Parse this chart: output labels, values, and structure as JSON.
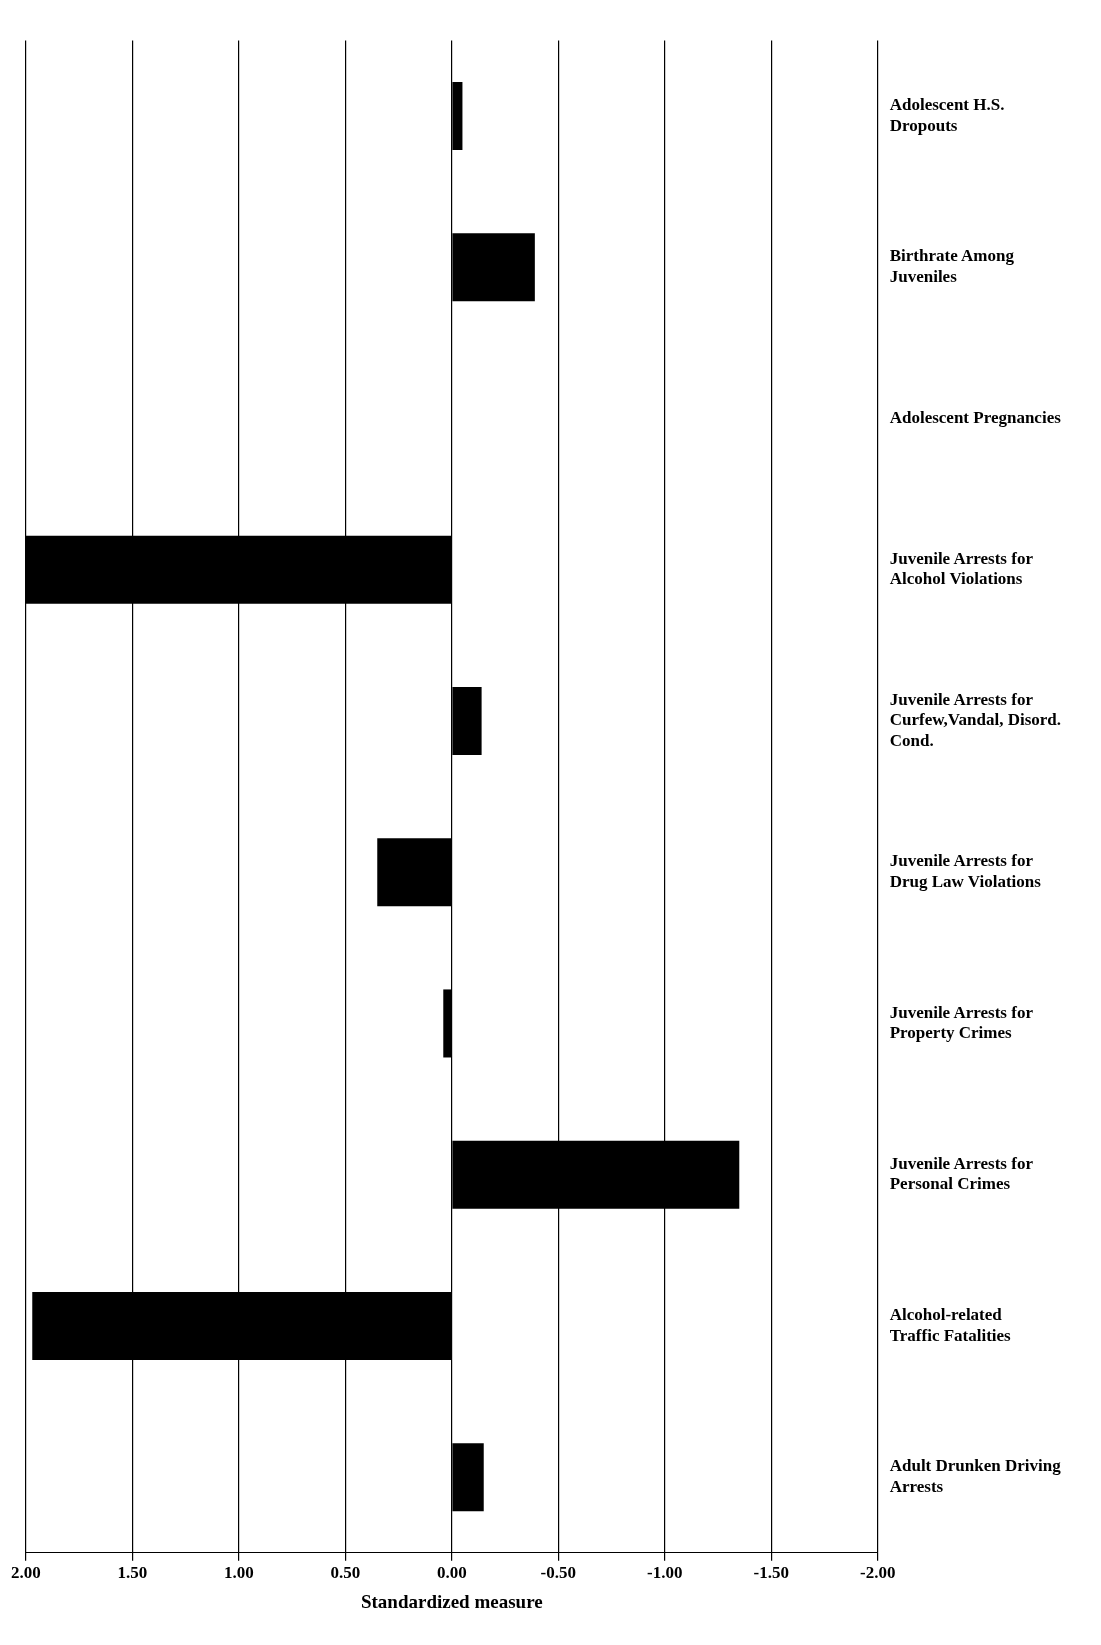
{
  "chart_data": {
    "type": "bar",
    "orientation": "horizontal",
    "xlabel": "Standardized measure",
    "categories": [
      "Adolescent H.S. Dropouts",
      "Birthrate Among Juveniles",
      "Adolescent Pregnancies",
      "Juvenile Arrests for Alcohol Violations",
      "Juvenile Arrests for Curfew,Vandal, Disord. Cond.",
      "Juvenile Arrests for Drug Law Violations",
      "Juvenile Arrests for Property Crimes",
      "Juvenile Arrests for Personal Crimes",
      "Alcohol-related Traffic Fatalities",
      "Adult Drunken Driving Arrests"
    ],
    "values": [
      -0.05,
      -0.39,
      0,
      2.0,
      -0.14,
      0.35,
      0.04,
      -1.35,
      1.97,
      -0.15
    ],
    "color": "#000000",
    "xlim": [
      2,
      -2
    ],
    "xticks": [
      {
        "value": 2,
        "label": "2.00"
      },
      {
        "value": 1.5,
        "label": "1.50"
      },
      {
        "value": 1,
        "label": "1.00"
      },
      {
        "value": 0.5,
        "label": "0.50"
      },
      {
        "value": 0,
        "label": "0.00"
      },
      {
        "value": -0.5,
        "label": "-0.50"
      },
      {
        "value": -1,
        "label": "-1.00"
      },
      {
        "value": -1.5,
        "label": "-1.50"
      },
      {
        "value": -2,
        "label": "-2.00"
      }
    ],
    "grid": "x",
    "legend": false
  }
}
